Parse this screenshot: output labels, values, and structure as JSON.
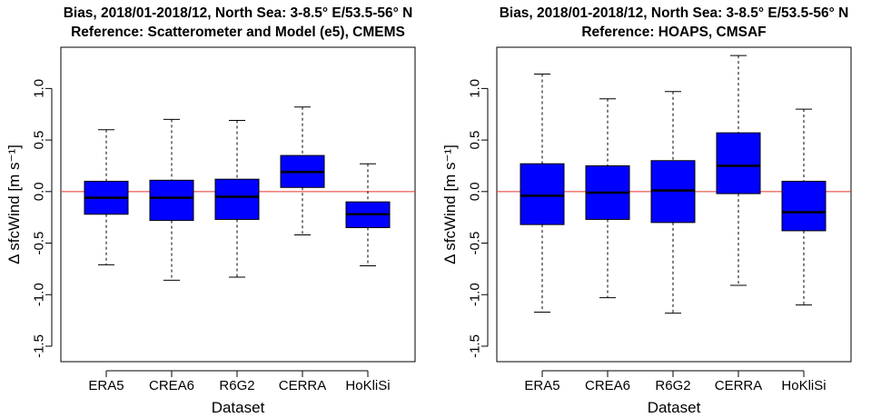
{
  "colors": {
    "box_fill": "#0000ff",
    "reference_line": "#e8352b",
    "frame": "#000000"
  },
  "chart_data": [
    {
      "type": "boxplot",
      "title": "Bias, 2018/01-2018/12, North Sea: 3-8.5° E/53.5-56° N",
      "subtitle": "Reference: Scatterometer and Model (e5), CMEMS",
      "xlabel": "Dataset",
      "ylabel": "Δ sfcWind [m s⁻¹]",
      "ylim": [
        -1.65,
        1.4
      ],
      "yticks": [
        "-1.5",
        "-1.0",
        "-0.5",
        "0.0",
        "0.5",
        "1.0"
      ],
      "reference_line": 0.0,
      "categories": [
        "ERA5",
        "CREA6",
        "R6G2",
        "CERRA",
        "HoKliSi"
      ],
      "boxes": [
        {
          "whisker_low": -0.71,
          "q1": -0.22,
          "median": -0.06,
          "q3": 0.1,
          "whisker_high": 0.6
        },
        {
          "whisker_low": -0.86,
          "q1": -0.28,
          "median": -0.06,
          "q3": 0.11,
          "whisker_high": 0.7
        },
        {
          "whisker_low": -0.83,
          "q1": -0.27,
          "median": -0.05,
          "q3": 0.12,
          "whisker_high": 0.69
        },
        {
          "whisker_low": -0.42,
          "q1": 0.04,
          "median": 0.19,
          "q3": 0.35,
          "whisker_high": 0.82
        },
        {
          "whisker_low": -0.72,
          "q1": -0.35,
          "median": -0.22,
          "q3": -0.1,
          "whisker_high": 0.27
        }
      ]
    },
    {
      "type": "boxplot",
      "title": "Bias, 2018/01-2018/12, North Sea: 3-8.5° E/53.5-56° N",
      "subtitle": "Reference: HOAPS, CMSAF",
      "xlabel": "Dataset",
      "ylabel": "Δ sfcWind [m s⁻¹]",
      "ylim": [
        -1.65,
        1.4
      ],
      "yticks": [
        "-1.5",
        "-1.0",
        "-0.5",
        "0.0",
        "0.5",
        "1.0"
      ],
      "reference_line": 0.0,
      "categories": [
        "ERA5",
        "CREA6",
        "R6G2",
        "CERRA",
        "HoKliSi"
      ],
      "boxes": [
        {
          "whisker_low": -1.17,
          "q1": -0.32,
          "median": -0.04,
          "q3": 0.27,
          "whisker_high": 1.14
        },
        {
          "whisker_low": -1.03,
          "q1": -0.27,
          "median": -0.01,
          "q3": 0.25,
          "whisker_high": 0.9
        },
        {
          "whisker_low": -1.18,
          "q1": -0.3,
          "median": 0.01,
          "q3": 0.3,
          "whisker_high": 0.97
        },
        {
          "whisker_low": -0.91,
          "q1": -0.02,
          "median": 0.25,
          "q3": 0.57,
          "whisker_high": 1.32
        },
        {
          "whisker_low": -1.1,
          "q1": -0.38,
          "median": -0.2,
          "q3": 0.1,
          "whisker_high": 0.8
        }
      ]
    }
  ]
}
